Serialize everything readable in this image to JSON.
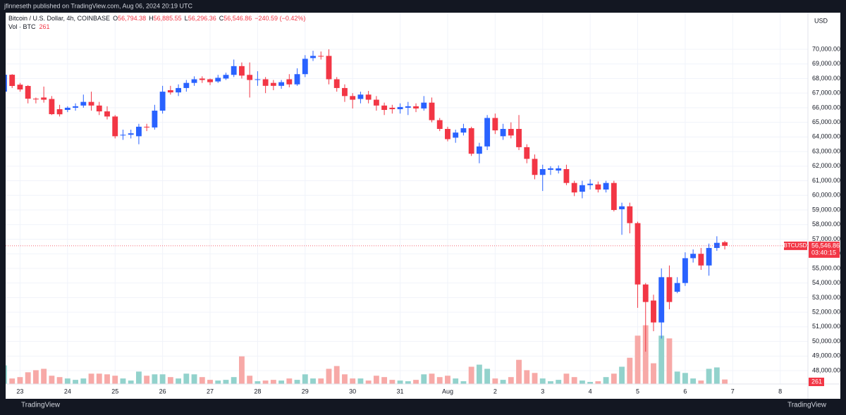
{
  "publisher": "jfinneseth published on TradingView.com, Aug 06, 2024 20:19 UTC",
  "brand": "TradingView",
  "chart_data": {
    "type": "candlestick",
    "title": "Bitcoin / U.S. Dollar, 4h, COINBASE",
    "ohlc_header": {
      "open_label": "O",
      "open": "56,794.38",
      "high_label": "H",
      "high": "56,885.55",
      "low_label": "L",
      "low": "56,296.36",
      "close_label": "C",
      "close": "56,546.86",
      "change": "−240.59 (−0.42%)"
    },
    "volume_title": "Vol · BTC",
    "currency": "USD",
    "symbol": "BTCUSD",
    "last_price_label": "56,546.86",
    "countdown": "03:40:15",
    "open": [
      67100,
      68260,
      67580,
      67490,
      66620,
      66700,
      66600,
      65900,
      65850,
      66000,
      66150,
      66400,
      66150,
      65750,
      65400,
      64100,
      64150,
      64050,
      64700,
      64650,
      65800,
      67200,
      67050,
      67350,
      67700,
      68000,
      67950,
      67800,
      68000,
      68250,
      68850,
      68250,
      67900,
      67950,
      67700,
      67500,
      67950,
      67600,
      68300,
      69400,
      69550,
      69550,
      67950,
      67350,
      66800,
      66600,
      66900,
      66550,
      66150,
      66000,
      65900,
      66000,
      66100,
      65950,
      66350,
      65150,
      64550,
      63950,
      64300,
      64600,
      62850,
      63350,
      65300,
      64050,
      64550,
      64550,
      63300,
      62500,
      61400,
      61750,
      61700,
      61800,
      60850,
      60250,
      60700,
      60750,
      60400,
      60850,
      59050,
      59250,
      58100,
      53900,
      52800,
      51300,
      54400,
      53400,
      54000,
      55700,
      56000,
      55200,
      56400,
      56794.38
    ],
    "high": [
      68450,
      68300,
      67700,
      67550,
      66700,
      67450,
      66800,
      66200,
      66100,
      66300,
      66900,
      67100,
      66400,
      66100,
      65500,
      64500,
      64500,
      64900,
      64900,
      66200,
      67500,
      67500,
      67600,
      67900,
      68150,
      68150,
      68000,
      68250,
      68400,
      69300,
      69100,
      69100,
      68500,
      68100,
      67900,
      67900,
      68300,
      68700,
      69600,
      69900,
      69850,
      70000,
      68100,
      67600,
      67000,
      67100,
      67150,
      66800,
      66350,
      66200,
      66300,
      66400,
      66300,
      66800,
      66700,
      65300,
      64700,
      64500,
      64900,
      64700,
      63600,
      65500,
      65600,
      64900,
      65000,
      65500,
      63500,
      62800,
      62100,
      62000,
      62050,
      62100,
      61000,
      61000,
      61100,
      60950,
      61000,
      61000,
      59500,
      59500,
      58200,
      54000,
      53200,
      55000,
      55200,
      54400,
      56100,
      56300,
      56400,
      56700,
      57200,
      56885.55
    ],
    "low": [
      67000,
      67350,
      67100,
      66300,
      66300,
      66350,
      65500,
      65400,
      65700,
      65800,
      66000,
      65800,
      65500,
      65200,
      63900,
      63800,
      63900,
      63500,
      64400,
      64500,
      65600,
      66900,
      66800,
      67100,
      67500,
      67700,
      67550,
      67700,
      67900,
      68100,
      68000,
      66700,
      67500,
      67000,
      67200,
      67300,
      67400,
      67500,
      68100,
      69200,
      69300,
      67600,
      67100,
      66400,
      65950,
      66300,
      66300,
      65800,
      65500,
      65600,
      65600,
      65500,
      65700,
      65800,
      65000,
      64400,
      63700,
      63600,
      64100,
      62700,
      62200,
      63100,
      64200,
      63800,
      63900,
      63100,
      62200,
      61100,
      60300,
      61400,
      61500,
      60700,
      59950,
      59800,
      60400,
      60200,
      60200,
      58900,
      57300,
      57400,
      52300,
      49300,
      50700,
      50200,
      52200,
      53300,
      53800,
      55400,
      54900,
      54500,
      56200,
      56296.36
    ],
    "close": [
      68260,
      67490,
      67250,
      66620,
      66580,
      66550,
      65560,
      65550,
      66000,
      66100,
      66400,
      66150,
      65750,
      65400,
      64050,
      64150,
      64250,
      64700,
      64650,
      65800,
      67100,
      67050,
      67350,
      67700,
      67950,
      67900,
      67750,
      68050,
      68250,
      68850,
      68200,
      67900,
      67950,
      67500,
      67500,
      67750,
      67600,
      68300,
      69350,
      69550,
      69500,
      67950,
      67350,
      66800,
      66550,
      66900,
      66550,
      66150,
      65850,
      65900,
      66050,
      66100,
      65950,
      66350,
      65150,
      64550,
      63850,
      64300,
      64600,
      62850,
      63350,
      65300,
      64450,
      64550,
      64100,
      63300,
      62500,
      61400,
      61800,
      61850,
      61850,
      60850,
      60200,
      60700,
      60800,
      60400,
      60850,
      59000,
      59250,
      58100,
      53900,
      52700,
      51300,
      54400,
      52700,
      54000,
      55700,
      56000,
      55200,
      56400,
      56750,
      56546.86
    ],
    "volume": [
      1080,
      320,
      400,
      680,
      800,
      880,
      480,
      400,
      320,
      240,
      320,
      600,
      600,
      560,
      480,
      320,
      200,
      720,
      480,
      560,
      560,
      400,
      320,
      600,
      560,
      400,
      240,
      200,
      240,
      400,
      1600,
      480,
      160,
      200,
      240,
      200,
      320,
      240,
      560,
      320,
      320,
      880,
      1040,
      560,
      320,
      320,
      200,
      480,
      400,
      240,
      200,
      160,
      240,
      560,
      600,
      400,
      480,
      320,
      160,
      1000,
      1120,
      880,
      320,
      240,
      400,
      1400,
      800,
      640,
      320,
      160,
      240,
      600,
      400,
      200,
      120,
      160,
      400,
      600,
      1000,
      1520,
      2800,
      3400,
      1200,
      2800,
      2640,
      720,
      640,
      320,
      200,
      880,
      960,
      261
    ],
    "up_color": "#2962ff",
    "down_color": "#f23645",
    "volume_up_color": "#92d2cc",
    "volume_down_color": "#f7a9a7",
    "volume_lim": [
      0,
      21500
    ],
    "ylim": [
      47086,
      72508
    ],
    "yticks": [
      {
        "value": 48000,
        "label": "48,000.00"
      },
      {
        "value": 49000,
        "label": "49,000.00"
      },
      {
        "value": 50000,
        "label": "50,000.00"
      },
      {
        "value": 51000,
        "label": "51,000.00"
      },
      {
        "value": 52000,
        "label": "52,000.00"
      },
      {
        "value": 53000,
        "label": "53,000.00"
      },
      {
        "value": 54000,
        "label": "54,000.00"
      },
      {
        "value": 55000,
        "label": "55,000.00"
      },
      {
        "value": 56000,
        "label": "56,000.00"
      },
      {
        "value": 57000,
        "label": "57,000.00"
      },
      {
        "value": 58000,
        "label": "58,000.00"
      },
      {
        "value": 59000,
        "label": "59,000.00"
      },
      {
        "value": 60000,
        "label": "60,000.00"
      },
      {
        "value": 61000,
        "label": "61,000.00"
      },
      {
        "value": 62000,
        "label": "62,000.00"
      },
      {
        "value": 63000,
        "label": "63,000.00"
      },
      {
        "value": 64000,
        "label": "64,000.00"
      },
      {
        "value": 65000,
        "label": "65,000.00"
      },
      {
        "value": 66000,
        "label": "66,000.00"
      },
      {
        "value": 67000,
        "label": "67,000.00"
      },
      {
        "value": 68000,
        "label": "68,000.00"
      },
      {
        "value": 69000,
        "label": "69,000.00"
      },
      {
        "value": 70000,
        "label": "70,000.00"
      }
    ],
    "xlim": [
      0.18,
      101.5
    ],
    "xticks": [
      {
        "value": 2,
        "label": "23"
      },
      {
        "value": 8,
        "label": "24"
      },
      {
        "value": 14,
        "label": "25"
      },
      {
        "value": 20,
        "label": "26"
      },
      {
        "value": 26,
        "label": "27"
      },
      {
        "value": 32,
        "label": "28"
      },
      {
        "value": 38,
        "label": "29"
      },
      {
        "value": 44,
        "label": "30"
      },
      {
        "value": 50,
        "label": "31"
      },
      {
        "value": 56,
        "label": "Aug"
      },
      {
        "value": 62,
        "label": "2"
      },
      {
        "value": 68,
        "label": "3"
      },
      {
        "value": 74,
        "label": "4"
      },
      {
        "value": 80,
        "label": "5"
      },
      {
        "value": 86,
        "label": "6"
      },
      {
        "value": 92,
        "label": "7"
      },
      {
        "value": 98,
        "label": "8"
      }
    ],
    "grid": true
  }
}
